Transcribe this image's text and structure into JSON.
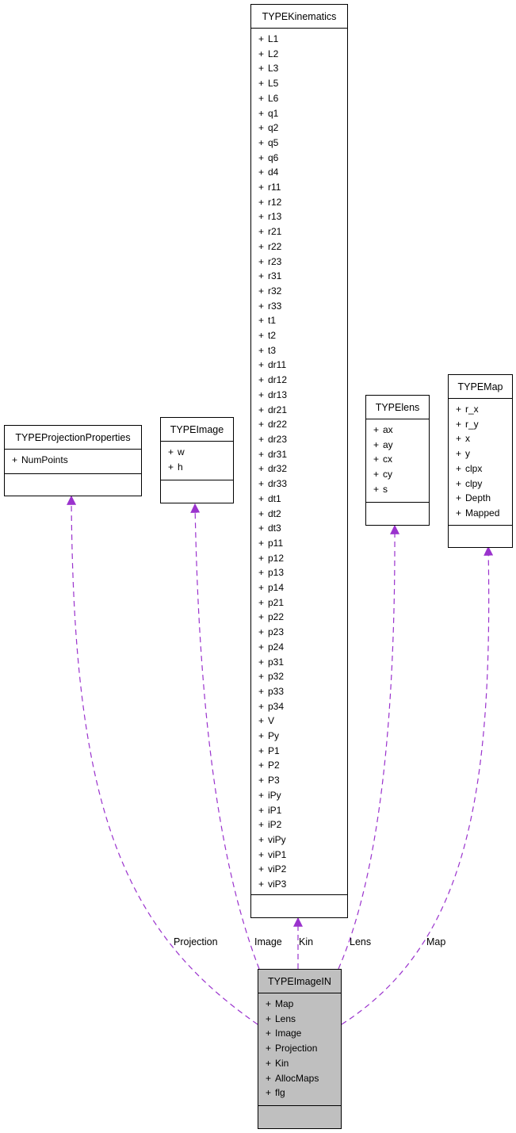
{
  "classes": {
    "kinematics": {
      "name": "TYPEKinematics",
      "attributes": [
        "L1",
        "L2",
        "L3",
        "L5",
        "L6",
        "q1",
        "q2",
        "q5",
        "q6",
        "d4",
        "r11",
        "r12",
        "r13",
        "r21",
        "r22",
        "r23",
        "r31",
        "r32",
        "r33",
        "t1",
        "t2",
        "t3",
        "dr11",
        "dr12",
        "dr13",
        "dr21",
        "dr22",
        "dr23",
        "dr31",
        "dr32",
        "dr33",
        "dt1",
        "dt2",
        "dt3",
        "p11",
        "p12",
        "p13",
        "p14",
        "p21",
        "p22",
        "p23",
        "p24",
        "p31",
        "p32",
        "p33",
        "p34",
        "V",
        "Py",
        "P1",
        "P2",
        "P3",
        "iPy",
        "iP1",
        "iP2",
        "viPy",
        "viP1",
        "viP2",
        "viP3"
      ]
    },
    "projection_properties": {
      "name": "TYPEProjectionProperties",
      "attributes": [
        "NumPoints"
      ]
    },
    "image": {
      "name": "TYPEImage",
      "attributes": [
        "w",
        "h"
      ]
    },
    "lens": {
      "name": "TYPElens",
      "attributes": [
        "ax",
        "ay",
        "cx",
        "cy",
        "s"
      ]
    },
    "map": {
      "name": "TYPEMap",
      "attributes": [
        "r_x",
        "r_y",
        "x",
        "y",
        "clpx",
        "clpy",
        "Depth",
        "Mapped"
      ]
    },
    "image_in": {
      "name": "TYPEImageIN",
      "attributes": [
        "Map",
        "Lens",
        "Image",
        "Projection",
        "Kin",
        "AllocMaps",
        "flg"
      ]
    }
  },
  "visibility_marker": "+",
  "edges": [
    {
      "label": "Projection",
      "from": "image_in",
      "to": "projection_properties"
    },
    {
      "label": "Image",
      "from": "image_in",
      "to": "image"
    },
    {
      "label": "Kin",
      "from": "image_in",
      "to": "kinematics"
    },
    {
      "label": "Lens",
      "from": "image_in",
      "to": "lens"
    },
    {
      "label": "Map",
      "from": "image_in",
      "to": "map"
    }
  ],
  "colors": {
    "edge": "#9a32cd",
    "highlight_fill": "#bfbfbf",
    "border": "#000000"
  }
}
